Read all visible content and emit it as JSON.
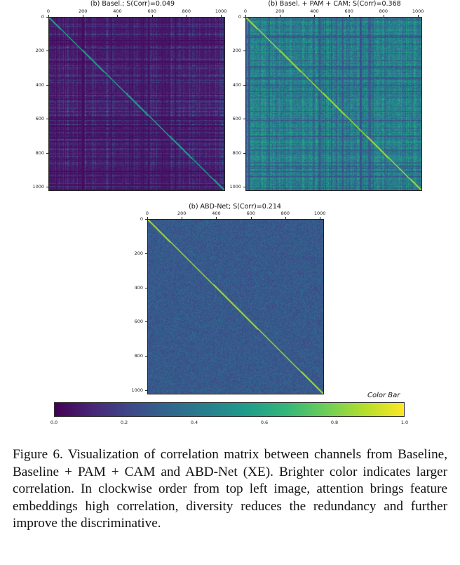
{
  "figure": {
    "panels": [
      {
        "title": "(b) Basel.; S(Corr)=0.049",
        "s_corr": 0.049,
        "mode": "baseline"
      },
      {
        "title": "(b) Basel. + PAM + CAM; S(Corr)=0.368",
        "s_corr": 0.368,
        "mode": "pamcam"
      },
      {
        "title": "(b) ABD-Net; S(Corr)=0.214",
        "s_corr": 0.214,
        "mode": "abd"
      }
    ],
    "x_ticks": [
      "0",
      "200",
      "400",
      "600",
      "800",
      "1000"
    ],
    "y_ticks": [
      "0",
      "200",
      "400",
      "600",
      "800",
      "1000"
    ],
    "axis_max": 1024,
    "colorbar": {
      "title": "Color Bar",
      "ticks": [
        "0.0",
        "0.2",
        "0.4",
        "0.6",
        "0.8",
        "1.0"
      ],
      "colors": [
        "#440154",
        "#482878",
        "#3e4a89",
        "#31688e",
        "#26828e",
        "#1f9e89",
        "#35b779",
        "#6ece58",
        "#b5de2b",
        "#fde725"
      ]
    }
  },
  "caption": "Figure 6. Visualization of correlation matrix between channels from Baseline, Baseline + PAM + CAM and ABD-Net (XE). Brighter color indicates larger correlation. In clockwise order from top left image, attention brings feature embeddings high correlation, diversity reduces the redundancy and further improve the discriminative."
}
